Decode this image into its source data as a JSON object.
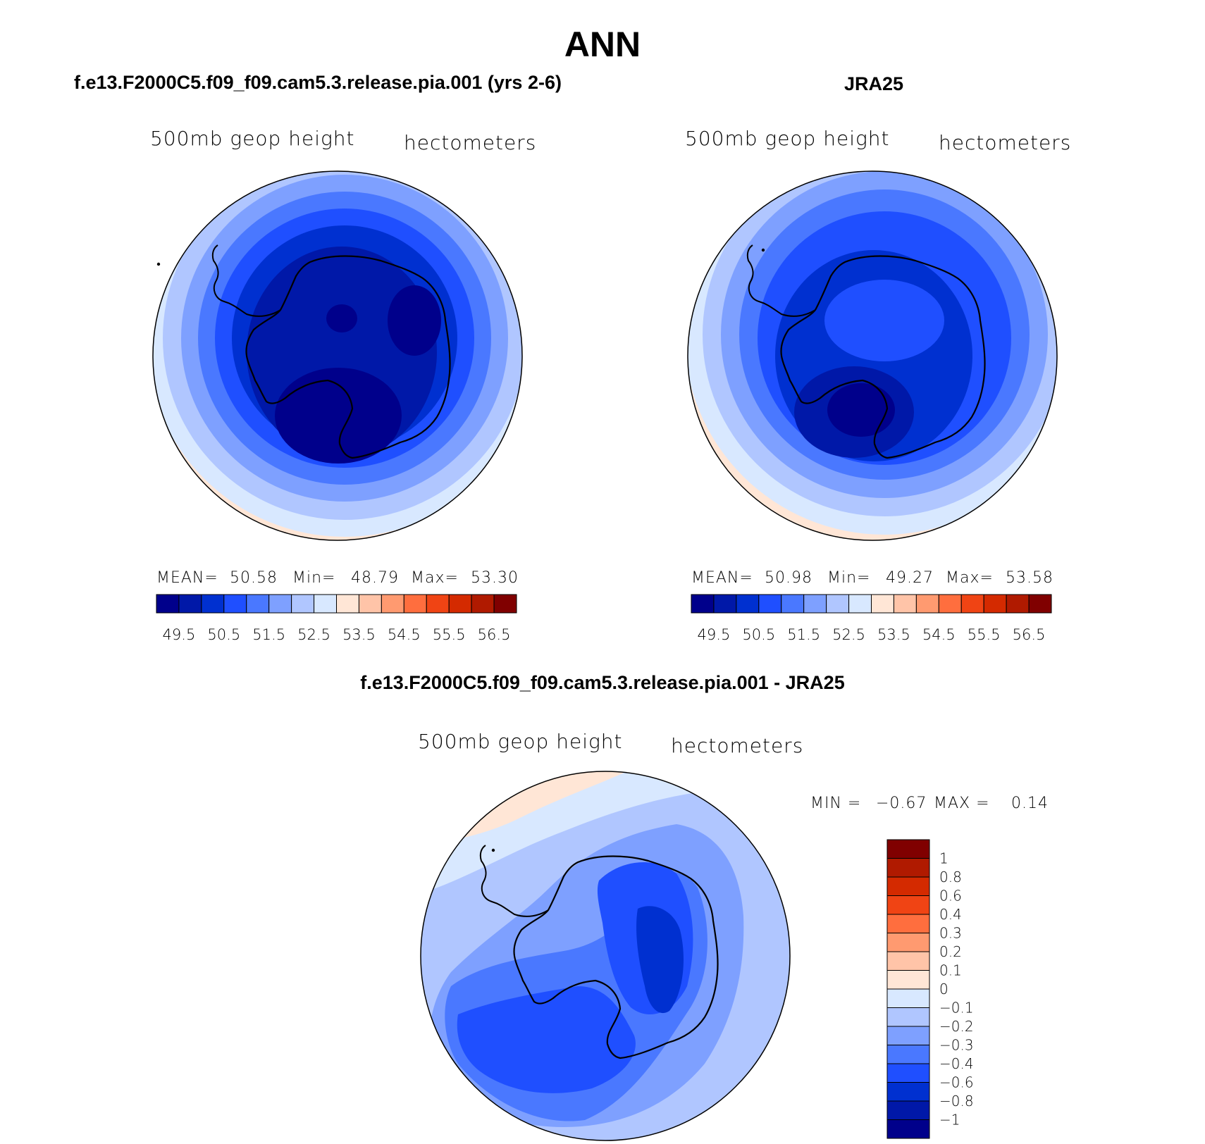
{
  "figure": {
    "title": "ANN"
  },
  "panels": {
    "model": {
      "title": "f.e13.F2000C5.f09_f09.cam5.3.release.pia.001 (yrs 2-6)",
      "variable": "500mb geop height",
      "units": "hectometers",
      "stats": {
        "mean_label": "MEAN=",
        "mean": "50.58",
        "min_label": "Min=",
        "min": "48.79",
        "max_label": "Max=",
        "max": "53.30"
      }
    },
    "obs": {
      "title": "JRA25",
      "variable": "500mb geop height",
      "units": "hectometers",
      "stats": {
        "mean_label": "MEAN=",
        "mean": "50.98",
        "min_label": "Min=",
        "min": "49.27",
        "max_label": "Max=",
        "max": "53.58"
      }
    },
    "diff": {
      "title": "f.e13.F2000C5.f09_f09.cam5.3.release.pia.001 - JRA25",
      "variable": "500mb geop height",
      "units": "hectometers",
      "stats": {
        "min_label": "MIN =",
        "min": "−0.67",
        "max_label": "MAX =",
        "max": "0.14"
      }
    }
  },
  "colorbars": {
    "field": {
      "colors": [
        "#00008b",
        "#0018a8",
        "#0030d0",
        "#1f4fff",
        "#4a78ff",
        "#7ea0ff",
        "#b0c6ff",
        "#d8e8ff",
        "#ffe6d6",
        "#ffc4a8",
        "#ff9a70",
        "#ff6e3e",
        "#f04414",
        "#d42a00",
        "#b01a00",
        "#800000"
      ],
      "ticks": [
        "49.5",
        "50.5",
        "51.5",
        "52.5",
        "53.5",
        "54.5",
        "55.5",
        "56.5"
      ]
    },
    "diff": {
      "colors": [
        "#00008b",
        "#0018a8",
        "#0030d0",
        "#1f4fff",
        "#4a78ff",
        "#7ea0ff",
        "#b0c6ff",
        "#d8e8ff",
        "#ffe6d6",
        "#ffc4a8",
        "#ff9a70",
        "#ff6e3e",
        "#f04414",
        "#d42a00",
        "#b01a00",
        "#800000"
      ],
      "ticks": [
        "−1",
        "−0.8",
        "−0.6",
        "−0.4",
        "−0.3",
        "−0.2",
        "−0.1",
        "0",
        "0.1",
        "0.2",
        "0.3",
        "0.4",
        "0.6",
        "0.8",
        "1"
      ]
    }
  }
}
